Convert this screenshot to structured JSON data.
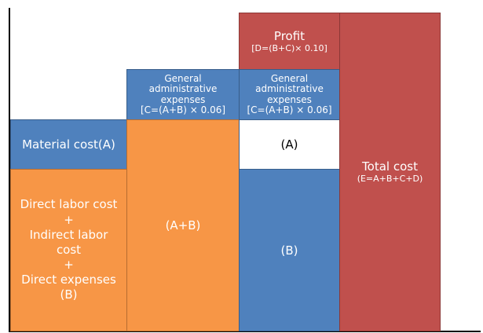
{
  "blocks": {
    "material": {
      "lines": [
        "Material cost(A)"
      ]
    },
    "labor": {
      "lines": [
        "Direct labor cost",
        "+",
        "Indirect labor",
        "cost",
        "+",
        "Direct expenses",
        "(B)"
      ]
    },
    "admin_1": {
      "lines": [
        "General",
        "administrative",
        "expenses",
        "[C=(A+B) × 0.06]"
      ]
    },
    "ab": {
      "lines": [
        "(A+B)"
      ]
    },
    "profit": {
      "lines": [
        "Profit",
        "[D=(B+C)× 0.10]"
      ]
    },
    "admin_2": {
      "lines": [
        "General",
        "administrative",
        "expenses",
        "[C=(A+B) × 0.06]"
      ]
    },
    "a": {
      "lines": [
        "(A)"
      ]
    },
    "b": {
      "lines": [
        "(B)"
      ]
    },
    "total": {
      "lines": [
        "Total cost",
        "(E=A+B+C+D)"
      ]
    }
  }
}
